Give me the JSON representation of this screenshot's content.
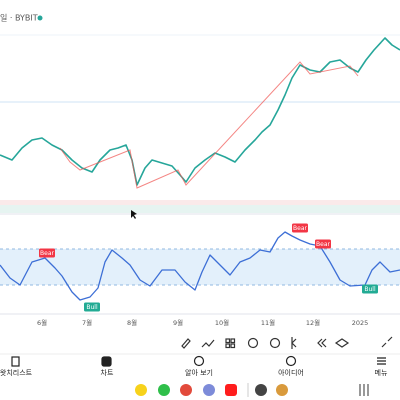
{
  "header": {
    "symbol": "일 · BYBIT"
  },
  "signals": [
    {
      "label": "Bear",
      "kind": "bear"
    },
    {
      "label": "Bear",
      "kind": "bear"
    },
    {
      "label": "Bear",
      "kind": "bear"
    },
    {
      "label": "Bull",
      "kind": "bull"
    },
    {
      "label": "Bull",
      "kind": "bull"
    }
  ],
  "time_axis": [
    "6월",
    "7월",
    "8월",
    "9월",
    "10월",
    "11월",
    "12월",
    "2025"
  ],
  "nav": [
    "왓치리스트",
    "차트",
    "알아 보기",
    "아이디어",
    "메뉴"
  ]
}
